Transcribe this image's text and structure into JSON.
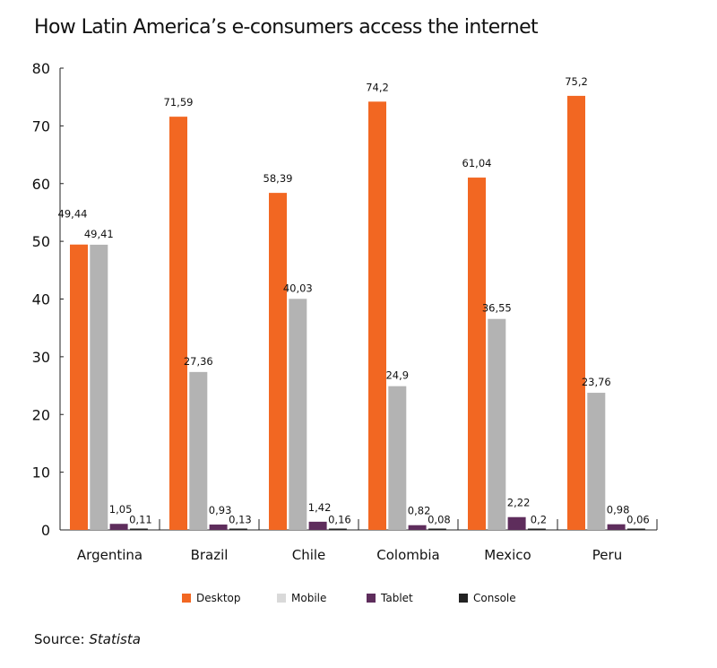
{
  "chart_data": {
    "type": "bar",
    "title": "How Latin America’s e-consumers access the internet",
    "xlabel": "",
    "ylabel": "",
    "ylim": [
      0,
      80
    ],
    "yticks": [
      0,
      10,
      20,
      30,
      40,
      50,
      60,
      70,
      80
    ],
    "categories": [
      "Argentina",
      "Brazil",
      "Chile",
      "Colombia",
      "Mexico",
      "Peru"
    ],
    "series": [
      {
        "name": "Desktop",
        "color": "#f26722",
        "values": [
          49.44,
          71.59,
          58.39,
          74.2,
          61.04,
          75.2
        ],
        "labels": [
          "49,44",
          "71,59",
          "58,39",
          "74,2",
          "61,04",
          "75,2"
        ]
      },
      {
        "name": "Mobile",
        "color": "#b3b3b3",
        "values": [
          49.41,
          27.36,
          40.03,
          24.9,
          36.55,
          23.76
        ],
        "labels": [
          "49,41",
          "27,36",
          "40,03",
          "24,9",
          "36,55",
          "23,76"
        ]
      },
      {
        "name": "Tablet",
        "color": "#5e2d5c",
        "values": [
          1.05,
          0.93,
          1.42,
          0.82,
          2.22,
          0.98
        ],
        "labels": [
          "1,05",
          "0,93",
          "1,42",
          "0,82",
          "2,22",
          "0,98"
        ]
      },
      {
        "name": "Console",
        "color": "#222222",
        "values": [
          0.11,
          0.13,
          0.16,
          0.08,
          0.2,
          0.06
        ],
        "labels": [
          "0,11",
          "0,13",
          "0,16",
          "0,08",
          "0,2",
          "0,06"
        ]
      }
    ],
    "legend": {
      "position": "bottom",
      "items": [
        "Desktop",
        "Mobile",
        "Tablet",
        "Console"
      ]
    },
    "grid": false
  },
  "source": {
    "label": "Source:",
    "value": "Statista"
  }
}
